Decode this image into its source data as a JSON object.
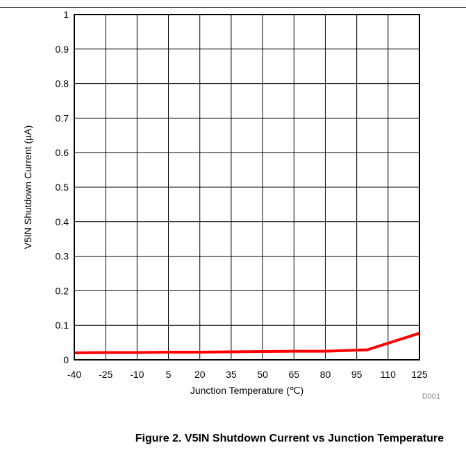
{
  "chart_data": {
    "type": "line",
    "title": "",
    "xlabel": "Junction Temperature (℃)",
    "ylabel": "V5IN Shutdown Current (µA)",
    "xlim": [
      -40,
      125
    ],
    "ylim": [
      0,
      1
    ],
    "x_ticks": [
      "-40",
      "-25",
      "-10",
      "5",
      "20",
      "35",
      "50",
      "65",
      "80",
      "95",
      "110",
      "125"
    ],
    "y_ticks": [
      "0",
      "0.1",
      "0.2",
      "0.3",
      "0.4",
      "0.5",
      "0.6",
      "0.7",
      "0.8",
      "0.9",
      "1"
    ],
    "grid": true,
    "series": [
      {
        "color": "#ff0000",
        "x": [
          -40,
          -25,
          -10,
          5,
          20,
          35,
          50,
          65,
          80,
          90,
          100,
          125
        ],
        "y": [
          0.02,
          0.021,
          0.021,
          0.022,
          0.022,
          0.023,
          0.024,
          0.025,
          0.025,
          0.027,
          0.029,
          0.077
        ]
      }
    ]
  },
  "figure_code": "D001",
  "caption": "Figure 2. V5IN Shutdown Current vs Junction Temperature"
}
